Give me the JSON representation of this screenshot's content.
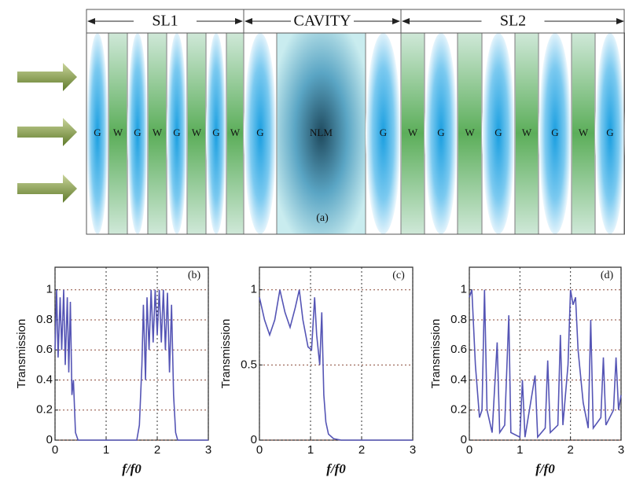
{
  "diagram": {
    "sections": [
      "SL1",
      "CAVITY",
      "SL2"
    ],
    "layers": [
      "G",
      "W",
      "G",
      "W",
      "G",
      "W",
      "G",
      "W",
      "G",
      "NLM",
      "G",
      "W",
      "G",
      "W",
      "G",
      "W",
      "G",
      "W",
      "G"
    ],
    "label": "(a)"
  },
  "chart_data": [
    {
      "type": "line",
      "annotation": "(b)",
      "xlabel": "f/f0",
      "ylabel": "Transmission",
      "color": "#5555b5",
      "grid": true,
      "xlim": [
        0,
        3
      ],
      "ylim": [
        0,
        1.15
      ],
      "xticks": [
        0,
        1,
        2,
        3
      ],
      "yticks": [
        0,
        0.2,
        0.4,
        0.6,
        0.8,
        1
      ],
      "x": [
        0,
        0.03,
        0.06,
        0.1,
        0.13,
        0.17,
        0.2,
        0.24,
        0.27,
        0.3,
        0.33,
        0.36,
        0.4,
        0.45,
        1.6,
        1.65,
        1.7,
        1.73,
        1.77,
        1.8,
        1.84,
        1.88,
        1.92,
        1.96,
        2.0,
        2.04,
        2.08,
        2.12,
        2.16,
        2.2,
        2.24,
        2.28,
        2.32,
        2.36,
        2.4,
        3
      ],
      "values": [
        0.6,
        1,
        0.55,
        0.95,
        0.6,
        1,
        0.5,
        0.95,
        0.45,
        0.92,
        0.3,
        0.4,
        0.05,
        0,
        0,
        0.1,
        0.5,
        0.9,
        0.4,
        0.95,
        0.6,
        1,
        0.65,
        1,
        0.7,
        1,
        0.65,
        1,
        0.6,
        0.98,
        0.45,
        0.9,
        0.3,
        0.05,
        0,
        0
      ]
    },
    {
      "type": "line",
      "annotation": "(c)",
      "xlabel": "f/f0",
      "ylabel": "Transmission",
      "color": "#5555b5",
      "grid": true,
      "xlim": [
        0,
        3
      ],
      "ylim": [
        0,
        1.15
      ],
      "xticks": [
        0,
        1,
        2,
        3
      ],
      "yticks": [
        0,
        0.5,
        1
      ],
      "x": [
        0,
        0.1,
        0.2,
        0.3,
        0.4,
        0.5,
        0.6,
        0.7,
        0.78,
        0.85,
        0.95,
        1.02,
        1.08,
        1.12,
        1.18,
        1.22,
        1.26,
        1.3,
        1.35,
        1.45,
        1.6,
        3
      ],
      "values": [
        0.95,
        0.8,
        0.7,
        0.8,
        1,
        0.85,
        0.75,
        0.88,
        1,
        0.8,
        0.62,
        0.6,
        0.95,
        0.7,
        0.5,
        0.85,
        0.3,
        0.12,
        0.04,
        0.01,
        0,
        0
      ]
    },
    {
      "type": "line",
      "annotation": "(d)",
      "xlabel": "f/f0",
      "ylabel": "Transmission",
      "color": "#5555b5",
      "grid": true,
      "xlim": [
        0,
        3
      ],
      "ylim": [
        0,
        1.15
      ],
      "xticks": [
        0,
        1,
        2,
        3
      ],
      "yticks": [
        0,
        0.2,
        0.4,
        0.6,
        0.8,
        1
      ],
      "x": [
        0,
        0.05,
        0.12,
        0.2,
        0.25,
        0.3,
        0.35,
        0.45,
        0.55,
        0.6,
        0.7,
        0.78,
        0.82,
        1.0,
        1.05,
        1.1,
        1.3,
        1.35,
        1.5,
        1.55,
        1.6,
        1.75,
        1.8,
        1.85,
        1.95,
        2.0,
        2.05,
        2.1,
        2.15,
        2.25,
        2.35,
        2.4,
        2.45,
        2.6,
        2.65,
        2.7,
        2.85,
        2.9,
        2.95,
        3
      ],
      "values": [
        0.95,
        1,
        0.5,
        0.15,
        0.2,
        1,
        0.2,
        0.05,
        0.65,
        0.05,
        0.1,
        0.83,
        0.05,
        0.02,
        0.4,
        0.02,
        0.43,
        0.02,
        0.08,
        0.53,
        0.05,
        0.1,
        0.7,
        0.1,
        0.5,
        1,
        0.9,
        0.95,
        0.6,
        0.25,
        0.08,
        0.8,
        0.08,
        0.15,
        0.55,
        0.1,
        0.2,
        0.55,
        0.2,
        0.3
      ]
    }
  ]
}
